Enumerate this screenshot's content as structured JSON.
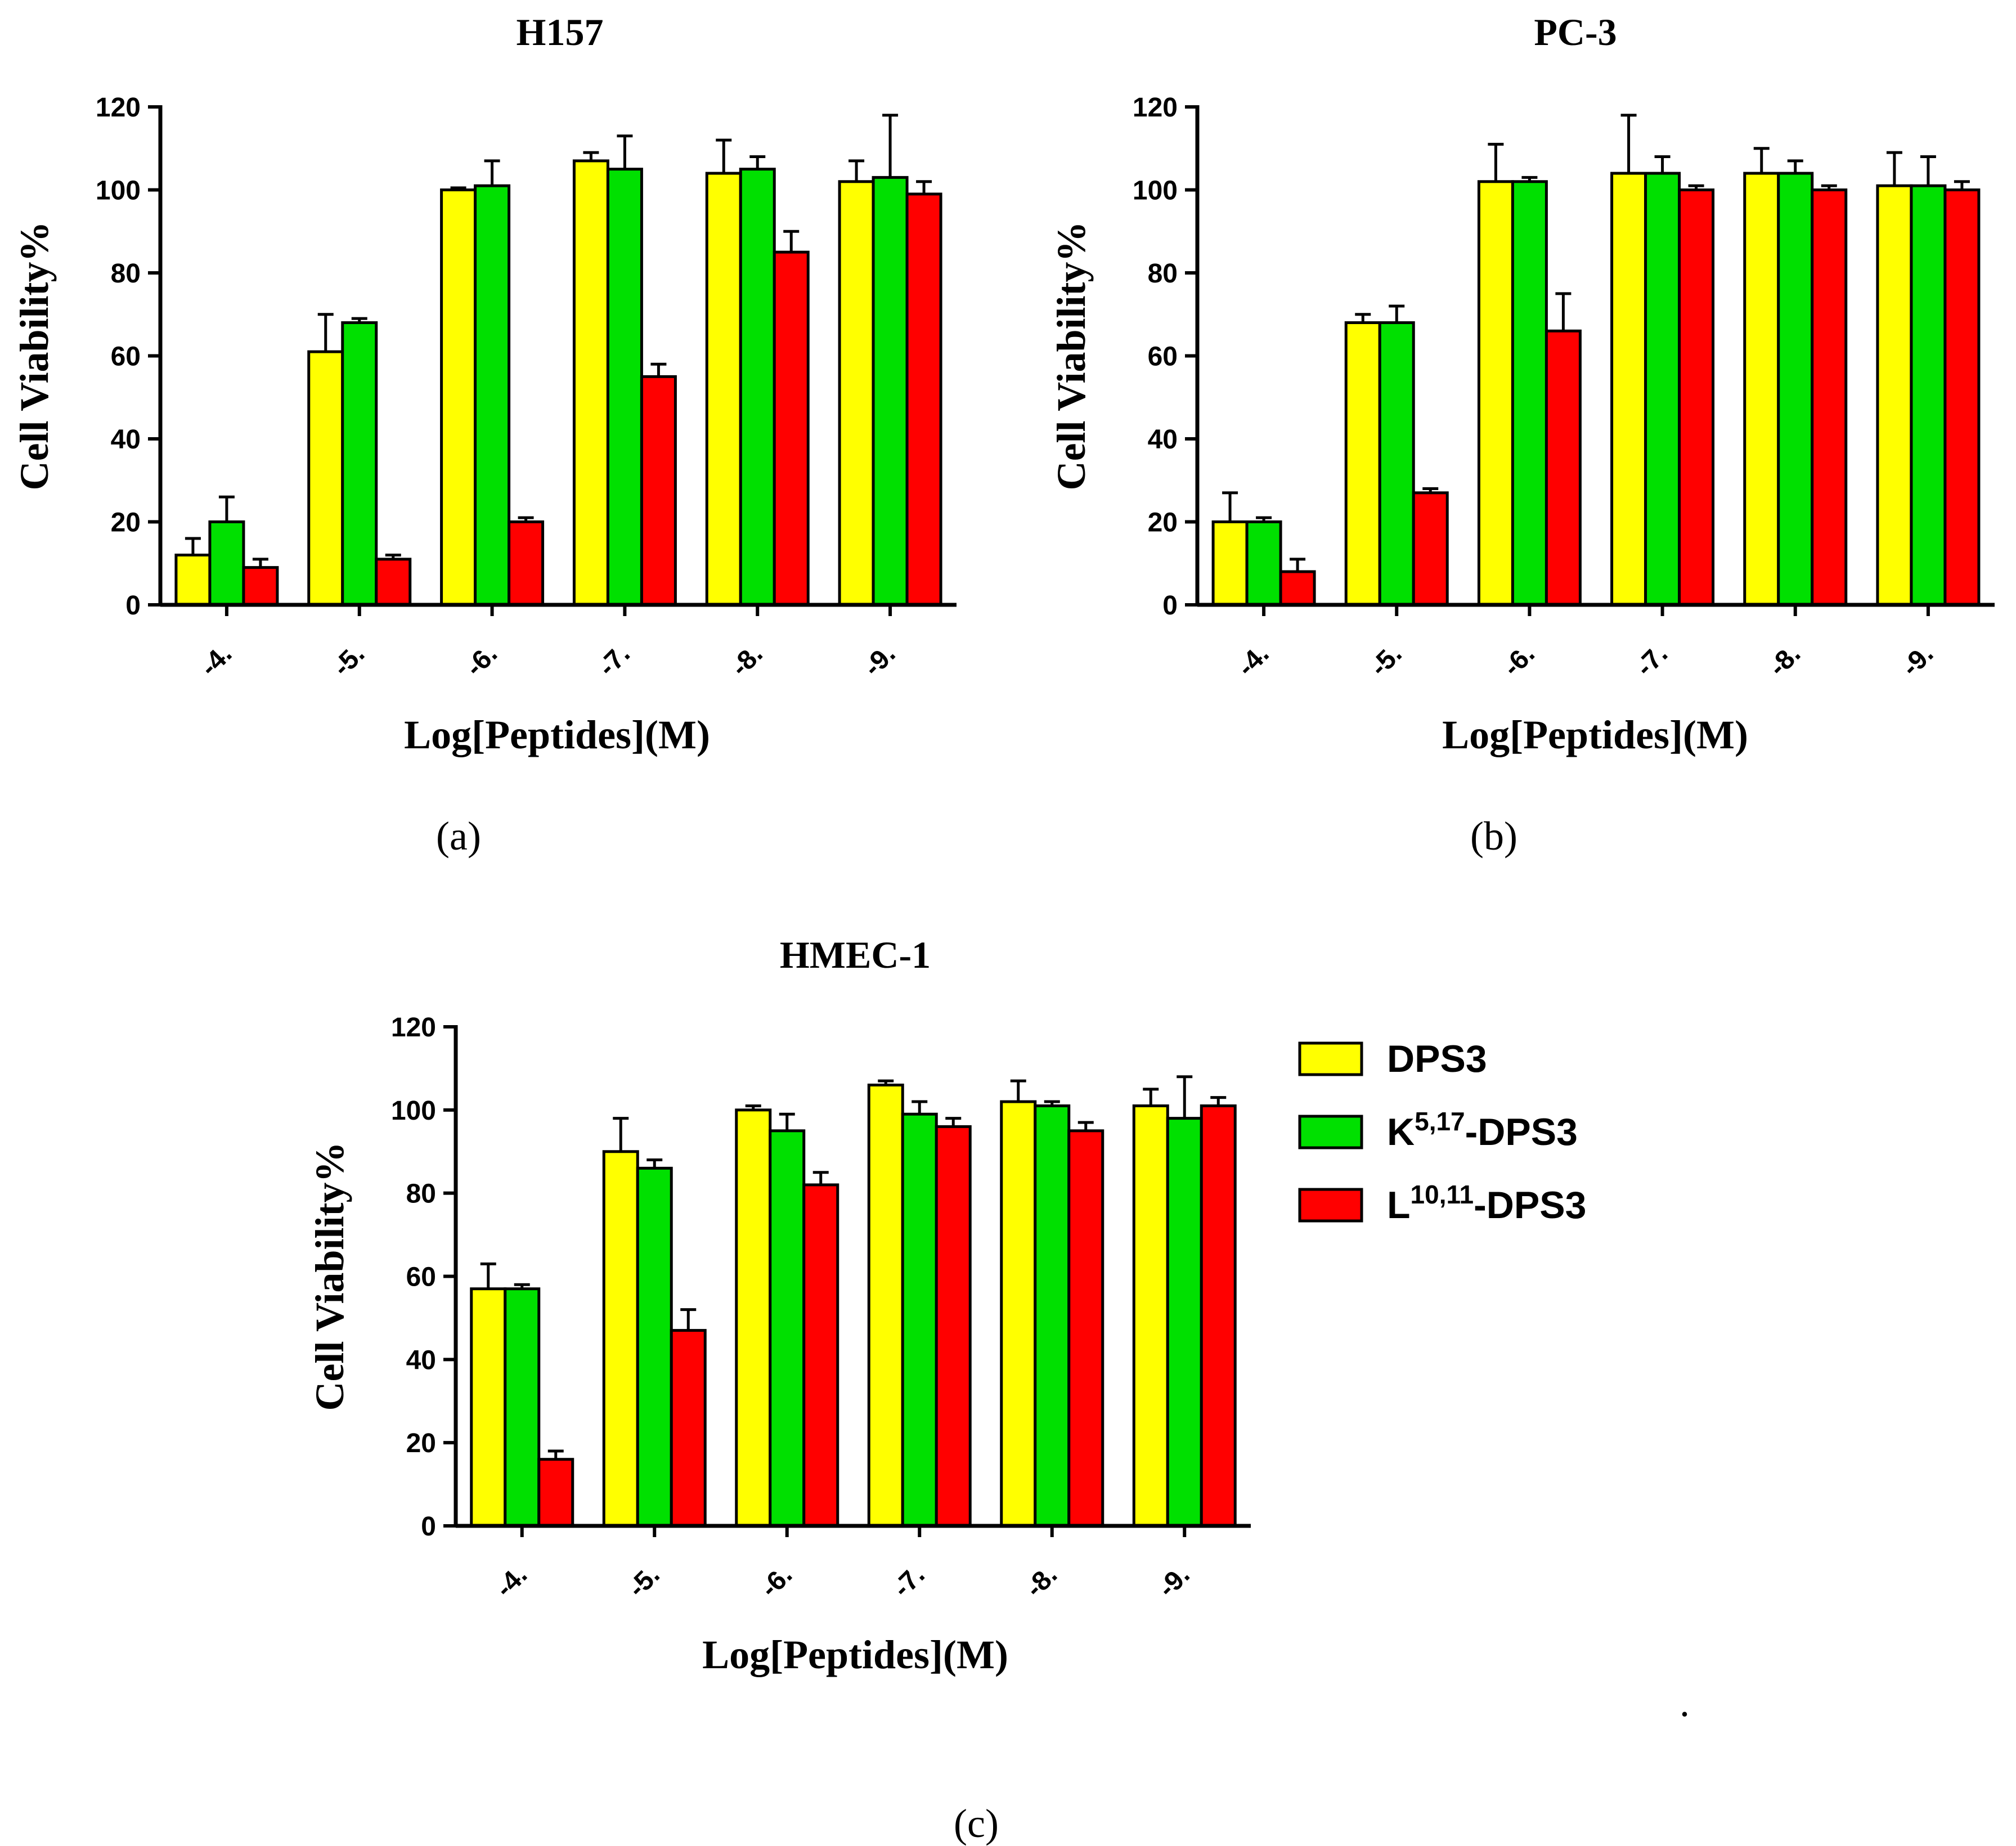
{
  "colors": {
    "DPS3": "#ffff00",
    "K": "#00e000",
    "L": "#ff0000"
  },
  "legend": [
    {
      "key": "DPS3",
      "main": "DPS3",
      "sup": "",
      "suffix": ""
    },
    {
      "key": "K",
      "main": "K",
      "sup": "5,17",
      "suffix": "-DPS3"
    },
    {
      "key": "L",
      "main": "L",
      "sup": "10,11",
      "suffix": "-DPS3"
    }
  ],
  "stray_mark": ".",
  "chart_data": [
    {
      "type": "bar",
      "id": "a",
      "title": "H157",
      "panel_label": "(a)",
      "xlabel": "Log[Peptides](M)",
      "ylabel": "Cell Viability%",
      "ylim": [
        0,
        120
      ],
      "yticks": [
        "0",
        "20",
        "40",
        "60",
        "80",
        "100",
        "120"
      ],
      "categories": [
        "-4.",
        "-5.",
        "-6.",
        "-7.",
        "-8.",
        "-9."
      ],
      "series": [
        {
          "name": "DPS3",
          "values": [
            12,
            61,
            100,
            107,
            104,
            102
          ],
          "errors": [
            4,
            9,
            0.5,
            2,
            8,
            5
          ]
        },
        {
          "name": "K5,17-DPS3",
          "values": [
            20,
            68,
            101,
            105,
            105,
            103
          ],
          "errors": [
            6,
            1,
            6,
            8,
            3,
            15
          ]
        },
        {
          "name": "L10,11-DPS3",
          "values": [
            9,
            11,
            20,
            55,
            85,
            99
          ],
          "errors": [
            2,
            1,
            1,
            3,
            5,
            3
          ]
        }
      ]
    },
    {
      "type": "bar",
      "id": "b",
      "title": "PC-3",
      "panel_label": "(b)",
      "xlabel": "Log[Peptides](M)",
      "ylabel": "Cell Viability%",
      "ylim": [
        0,
        120
      ],
      "yticks": [
        "0",
        "20",
        "40",
        "60",
        "80",
        "100",
        "120"
      ],
      "categories": [
        "-4.",
        "-5.",
        "-6.",
        "-7.",
        "-8.",
        "-9."
      ],
      "series": [
        {
          "name": "DPS3",
          "values": [
            20,
            68,
            102,
            104,
            104,
            101
          ],
          "errors": [
            7,
            2,
            9,
            14,
            6,
            8
          ]
        },
        {
          "name": "K5,17-DPS3",
          "values": [
            20,
            68,
            102,
            104,
            104,
            101
          ],
          "errors": [
            1,
            4,
            1,
            4,
            3,
            7
          ]
        },
        {
          "name": "L10,11-DPS3",
          "values": [
            8,
            27,
            66,
            100,
            100,
            100
          ],
          "errors": [
            3,
            1,
            9,
            1,
            1,
            2
          ]
        }
      ]
    },
    {
      "type": "bar",
      "id": "c",
      "title": "HMEC-1",
      "panel_label": "(c)",
      "xlabel": "Log[Peptides](M)",
      "ylabel": "Cell Viability%",
      "ylim": [
        0,
        120
      ],
      "yticks": [
        "0",
        "20",
        "40",
        "60",
        "80",
        "100",
        "120"
      ],
      "categories": [
        "-4.",
        "-5.",
        "-6.",
        "-7.",
        "-8.",
        "-9."
      ],
      "series": [
        {
          "name": "DPS3",
          "values": [
            57,
            90,
            100,
            106,
            102,
            101
          ],
          "errors": [
            6,
            8,
            1,
            1,
            5,
            4
          ]
        },
        {
          "name": "K5,17-DPS3",
          "values": [
            57,
            86,
            95,
            99,
            101,
            98
          ],
          "errors": [
            1,
            2,
            4,
            3,
            1,
            10
          ]
        },
        {
          "name": "L10,11-DPS3",
          "values": [
            16,
            47,
            82,
            96,
            95,
            101
          ],
          "errors": [
            2,
            5,
            3,
            2,
            2,
            2
          ]
        }
      ]
    }
  ]
}
